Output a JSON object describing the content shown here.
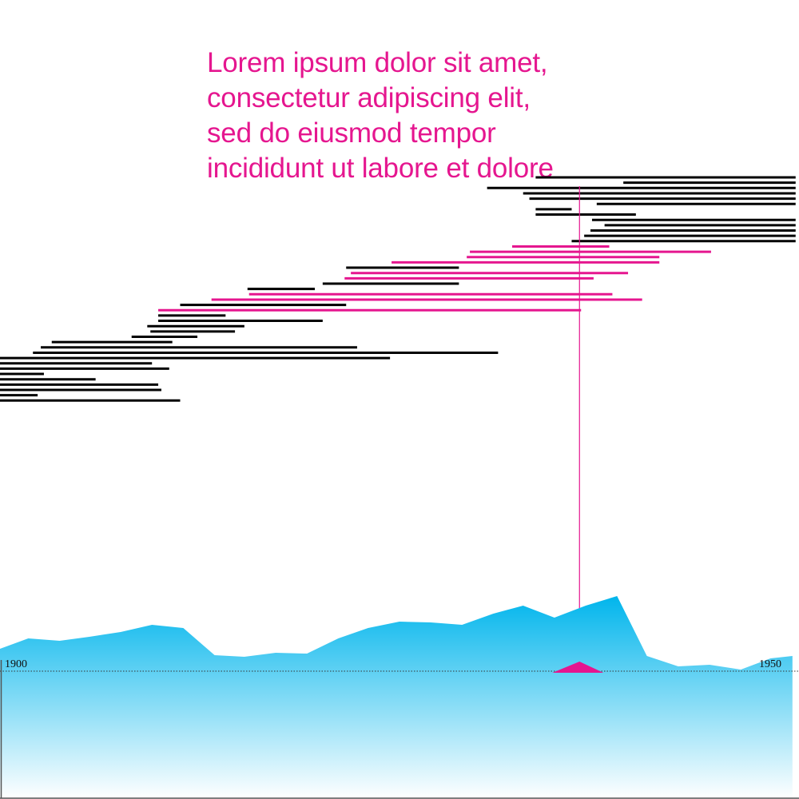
{
  "annotation": {
    "lines": [
      "Lorem ipsum dolor sit amet,",
      "consectetur adipiscing elit,",
      "sed do eiusmod tempor",
      "incididunt ut labore et dolore"
    ],
    "x": 1936.8
  },
  "colors": {
    "highlight": "#e5168f",
    "bar": "#000000",
    "area_top": "#00b5ec",
    "area_bottom": "#ffffff",
    "axis": "#555555"
  },
  "chart_data": {
    "type": "area",
    "x_range": [
      1900,
      1950.4
    ],
    "x_ticks": [
      {
        "value": 1900,
        "label": "1900"
      },
      {
        "value": 1950,
        "label": "1950"
      }
    ],
    "spans": [
      {
        "start": 1934.0,
        "end": 1950.6,
        "highlight": false
      },
      {
        "start": 1939.6,
        "end": 1950.6,
        "highlight": false
      },
      {
        "start": 1930.9,
        "end": 1950.6,
        "highlight": false
      },
      {
        "start": 1933.2,
        "end": 1950.6,
        "highlight": false
      },
      {
        "start": 1933.6,
        "end": 1950.6,
        "highlight": false
      },
      {
        "start": 1937.9,
        "end": 1950.6,
        "highlight": false
      },
      {
        "start": 1934.0,
        "end": 1936.3,
        "highlight": false
      },
      {
        "start": 1934.0,
        "end": 1940.4,
        "highlight": false
      },
      {
        "start": 1937.6,
        "end": 1950.6,
        "highlight": false
      },
      {
        "start": 1938.4,
        "end": 1950.6,
        "highlight": false
      },
      {
        "start": 1937.5,
        "end": 1950.6,
        "highlight": false
      },
      {
        "start": 1937.1,
        "end": 1950.6,
        "highlight": false
      },
      {
        "start": 1936.3,
        "end": 1950.6,
        "highlight": false
      },
      {
        "start": 1932.5,
        "end": 1938.7,
        "highlight": true
      },
      {
        "start": 1929.8,
        "end": 1945.2,
        "highlight": true
      },
      {
        "start": 1929.6,
        "end": 1941.9,
        "highlight": true
      },
      {
        "start": 1924.8,
        "end": 1941.9,
        "highlight": true
      },
      {
        "start": 1921.9,
        "end": 1929.1,
        "highlight": false
      },
      {
        "start": 1922.2,
        "end": 1939.9,
        "highlight": true
      },
      {
        "start": 1921.8,
        "end": 1937.7,
        "highlight": true
      },
      {
        "start": 1920.4,
        "end": 1929.1,
        "highlight": false
      },
      {
        "start": 1915.6,
        "end": 1919.9,
        "highlight": false
      },
      {
        "start": 1915.7,
        "end": 1938.9,
        "highlight": true
      },
      {
        "start": 1913.3,
        "end": 1940.8,
        "highlight": true
      },
      {
        "start": 1911.3,
        "end": 1921.9,
        "highlight": false
      },
      {
        "start": 1909.9,
        "end": 1936.9,
        "highlight": true
      },
      {
        "start": 1909.9,
        "end": 1914.2,
        "highlight": false
      },
      {
        "start": 1909.9,
        "end": 1920.4,
        "highlight": false
      },
      {
        "start": 1909.2,
        "end": 1915.4,
        "highlight": false
      },
      {
        "start": 1909.4,
        "end": 1914.8,
        "highlight": false
      },
      {
        "start": 1908.2,
        "end": 1912.4,
        "highlight": false
      },
      {
        "start": 1903.1,
        "end": 1910.8,
        "highlight": false
      },
      {
        "start": 1902.4,
        "end": 1922.6,
        "highlight": false
      },
      {
        "start": 1901.9,
        "end": 1931.6,
        "highlight": false
      },
      {
        "start": 1899.6,
        "end": 1924.7,
        "highlight": false
      },
      {
        "start": 1899.6,
        "end": 1909.5,
        "highlight": false
      },
      {
        "start": 1899.6,
        "end": 1910.6,
        "highlight": false
      },
      {
        "start": 1899.6,
        "end": 1902.6,
        "highlight": false
      },
      {
        "start": 1899.6,
        "end": 1905.9,
        "highlight": false
      },
      {
        "start": 1899.6,
        "end": 1909.9,
        "highlight": false
      },
      {
        "start": 1899.6,
        "end": 1910.1,
        "highlight": false
      },
      {
        "start": 1899.6,
        "end": 1902.2,
        "highlight": false
      },
      {
        "start": 1899.6,
        "end": 1911.3,
        "highlight": false
      }
    ],
    "area": {
      "x": [
        1899.6,
        1901.6,
        1903.6,
        1905.5,
        1907.5,
        1909.5,
        1911.5,
        1913.5,
        1915.4,
        1917.4,
        1919.4,
        1921.4,
        1923.3,
        1925.3,
        1927.3,
        1929.3,
        1931.3,
        1933.2,
        1935.2,
        1937.2,
        1939.2,
        1941.1,
        1943.1,
        1945.1,
        1947.1,
        1949.0,
        1950.4
      ],
      "y": [
        8.8,
        10.1,
        9.8,
        10.3,
        10.9,
        11.8,
        11.4,
        8.0,
        7.8,
        8.3,
        8.2,
        10.1,
        11.4,
        12.2,
        12.1,
        11.8,
        13.2,
        14.2,
        12.7,
        14.2,
        15.4,
        7.9,
        6.6,
        6.8,
        6.2,
        7.6,
        7.9
      ]
    },
    "marker": {
      "x": 1936.8
    }
  }
}
